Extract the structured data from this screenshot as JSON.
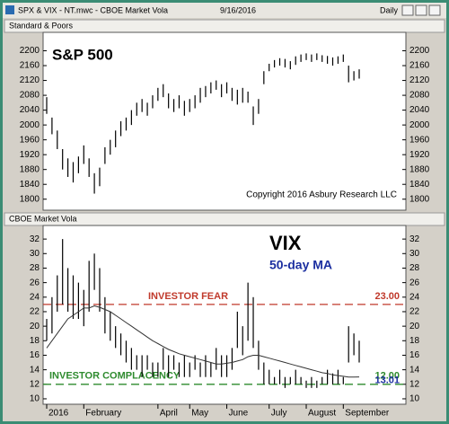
{
  "window": {
    "title": "SPX & VIX - NT.mwc - CBOE Market Vola",
    "date": "9/16/2016",
    "interval": "Daily"
  },
  "chart_data": [
    {
      "type": "ohlc",
      "panel_title": "Standard & Poors",
      "title": "S&P 500",
      "annotation": "Copyright 2016 Asbury Research LLC",
      "color": "#000000",
      "ylim": [
        1780,
        2240
      ],
      "yticks": [
        1800,
        1840,
        1880,
        1920,
        1960,
        2000,
        2040,
        2080,
        2120,
        2160,
        2200
      ],
      "high": [
        2075,
        2020,
        1985,
        1935,
        1910,
        1900,
        1915,
        1945,
        1910,
        1870,
        1885,
        1940,
        1960,
        1985,
        2010,
        2020,
        2040,
        2060,
        2070,
        2060,
        2080,
        2100,
        2110,
        2085,
        2070,
        2080,
        2065,
        2070,
        2080,
        2100,
        2105,
        2115,
        2120,
        2110,
        2115,
        2100,
        2095,
        2100,
        2090,
        2050,
        2070,
        2145,
        2165,
        2175,
        2180,
        2178,
        2172,
        2185,
        2190,
        2193,
        2190,
        2193,
        2188,
        2186,
        2182,
        2185,
        2190,
        2160,
        2145,
        2150
      ],
      "low": [
        2030,
        1975,
        1935,
        1880,
        1860,
        1845,
        1870,
        1895,
        1860,
        1815,
        1835,
        1895,
        1920,
        1940,
        1970,
        1985,
        2000,
        2025,
        2035,
        2025,
        2045,
        2065,
        2075,
        2045,
        2035,
        2045,
        2025,
        2035,
        2045,
        2060,
        2075,
        2085,
        2095,
        2075,
        2085,
        2065,
        2055,
        2060,
        2060,
        2000,
        2030,
        2110,
        2145,
        2155,
        2160,
        2155,
        2150,
        2162,
        2170,
        2175,
        2170,
        2175,
        2170,
        2165,
        2160,
        2165,
        2170,
        2115,
        2120,
        2125
      ]
    },
    {
      "type": "ohlc",
      "panel_title": "CBOE Market Vola",
      "title": "VIX",
      "color": "#000000",
      "ylim": [
        9.5,
        33.5
      ],
      "yticks": [
        10,
        12,
        14,
        16,
        18,
        20,
        22,
        24,
        26,
        28,
        30,
        32
      ],
      "categories": [
        "2016",
        null,
        null,
        null,
        null,
        null,
        null,
        "February",
        null,
        null,
        null,
        null,
        null,
        null,
        null,
        null,
        null,
        null,
        null,
        null,
        null,
        "April",
        null,
        null,
        null,
        null,
        null,
        "May",
        null,
        null,
        null,
        null,
        null,
        null,
        "June",
        null,
        null,
        null,
        null,
        null,
        null,
        null,
        "July",
        null,
        null,
        null,
        null,
        null,
        null,
        "August",
        null,
        null,
        null,
        null,
        null,
        null,
        "September",
        null,
        null,
        null
      ],
      "high": [
        21,
        24,
        27,
        32,
        28,
        27,
        26,
        25,
        29,
        30,
        28,
        24,
        22,
        20,
        19,
        18,
        17,
        16,
        16,
        16,
        15,
        15,
        17,
        16,
        16,
        15,
        16,
        15,
        16,
        15,
        16,
        15,
        17,
        16,
        16,
        17,
        22,
        20,
        26,
        24,
        18,
        15,
        14,
        13,
        14,
        13,
        13,
        14,
        13,
        12.5,
        13,
        12.5,
        13,
        14,
        13.5,
        14,
        13,
        20,
        19,
        18
      ],
      "low": [
        18,
        19,
        22,
        23,
        22,
        21,
        21,
        20,
        22,
        25,
        22,
        19,
        18,
        17,
        16,
        15,
        14,
        14,
        13,
        14,
        13,
        13,
        14,
        13,
        14,
        13,
        13,
        13,
        14,
        13,
        13,
        13,
        14,
        13,
        13,
        14,
        17,
        16,
        18,
        17,
        14,
        12,
        12,
        12,
        12,
        11.5,
        12,
        12,
        12,
        11.5,
        11.5,
        11.5,
        12,
        12,
        12,
        12,
        12,
        15,
        16,
        15
      ],
      "ma": {
        "name": "50-day MA",
        "color": "#333333",
        "values": [
          17,
          18,
          19,
          20,
          21,
          21.5,
          22,
          22.5,
          22.5,
          22.8,
          22.6,
          22.3,
          22,
          21.5,
          21,
          20.5,
          20,
          19.5,
          19,
          18.5,
          18,
          17.6,
          17.2,
          16.8,
          16.5,
          16.2,
          16,
          15.8,
          15.6,
          15.4,
          15.2,
          15,
          14.8,
          14.8,
          14.9,
          15,
          15.2,
          15.4,
          15.8,
          16,
          16,
          15.8,
          15.6,
          15.4,
          15.2,
          15,
          14.8,
          14.6,
          14.4,
          14.2,
          14,
          13.8,
          13.6,
          13.5,
          13.3,
          13.2,
          13.1,
          13,
          13,
          13.01
        ]
      },
      "hlines": [
        {
          "value": 23,
          "label": "23.00",
          "text": "INVESTOR FEAR",
          "color": "#c0392b"
        },
        {
          "value": 12,
          "label": "12.00",
          "text": "INVESTOR COMPLACENCY",
          "color": "#2e8b2e"
        }
      ]
    }
  ]
}
